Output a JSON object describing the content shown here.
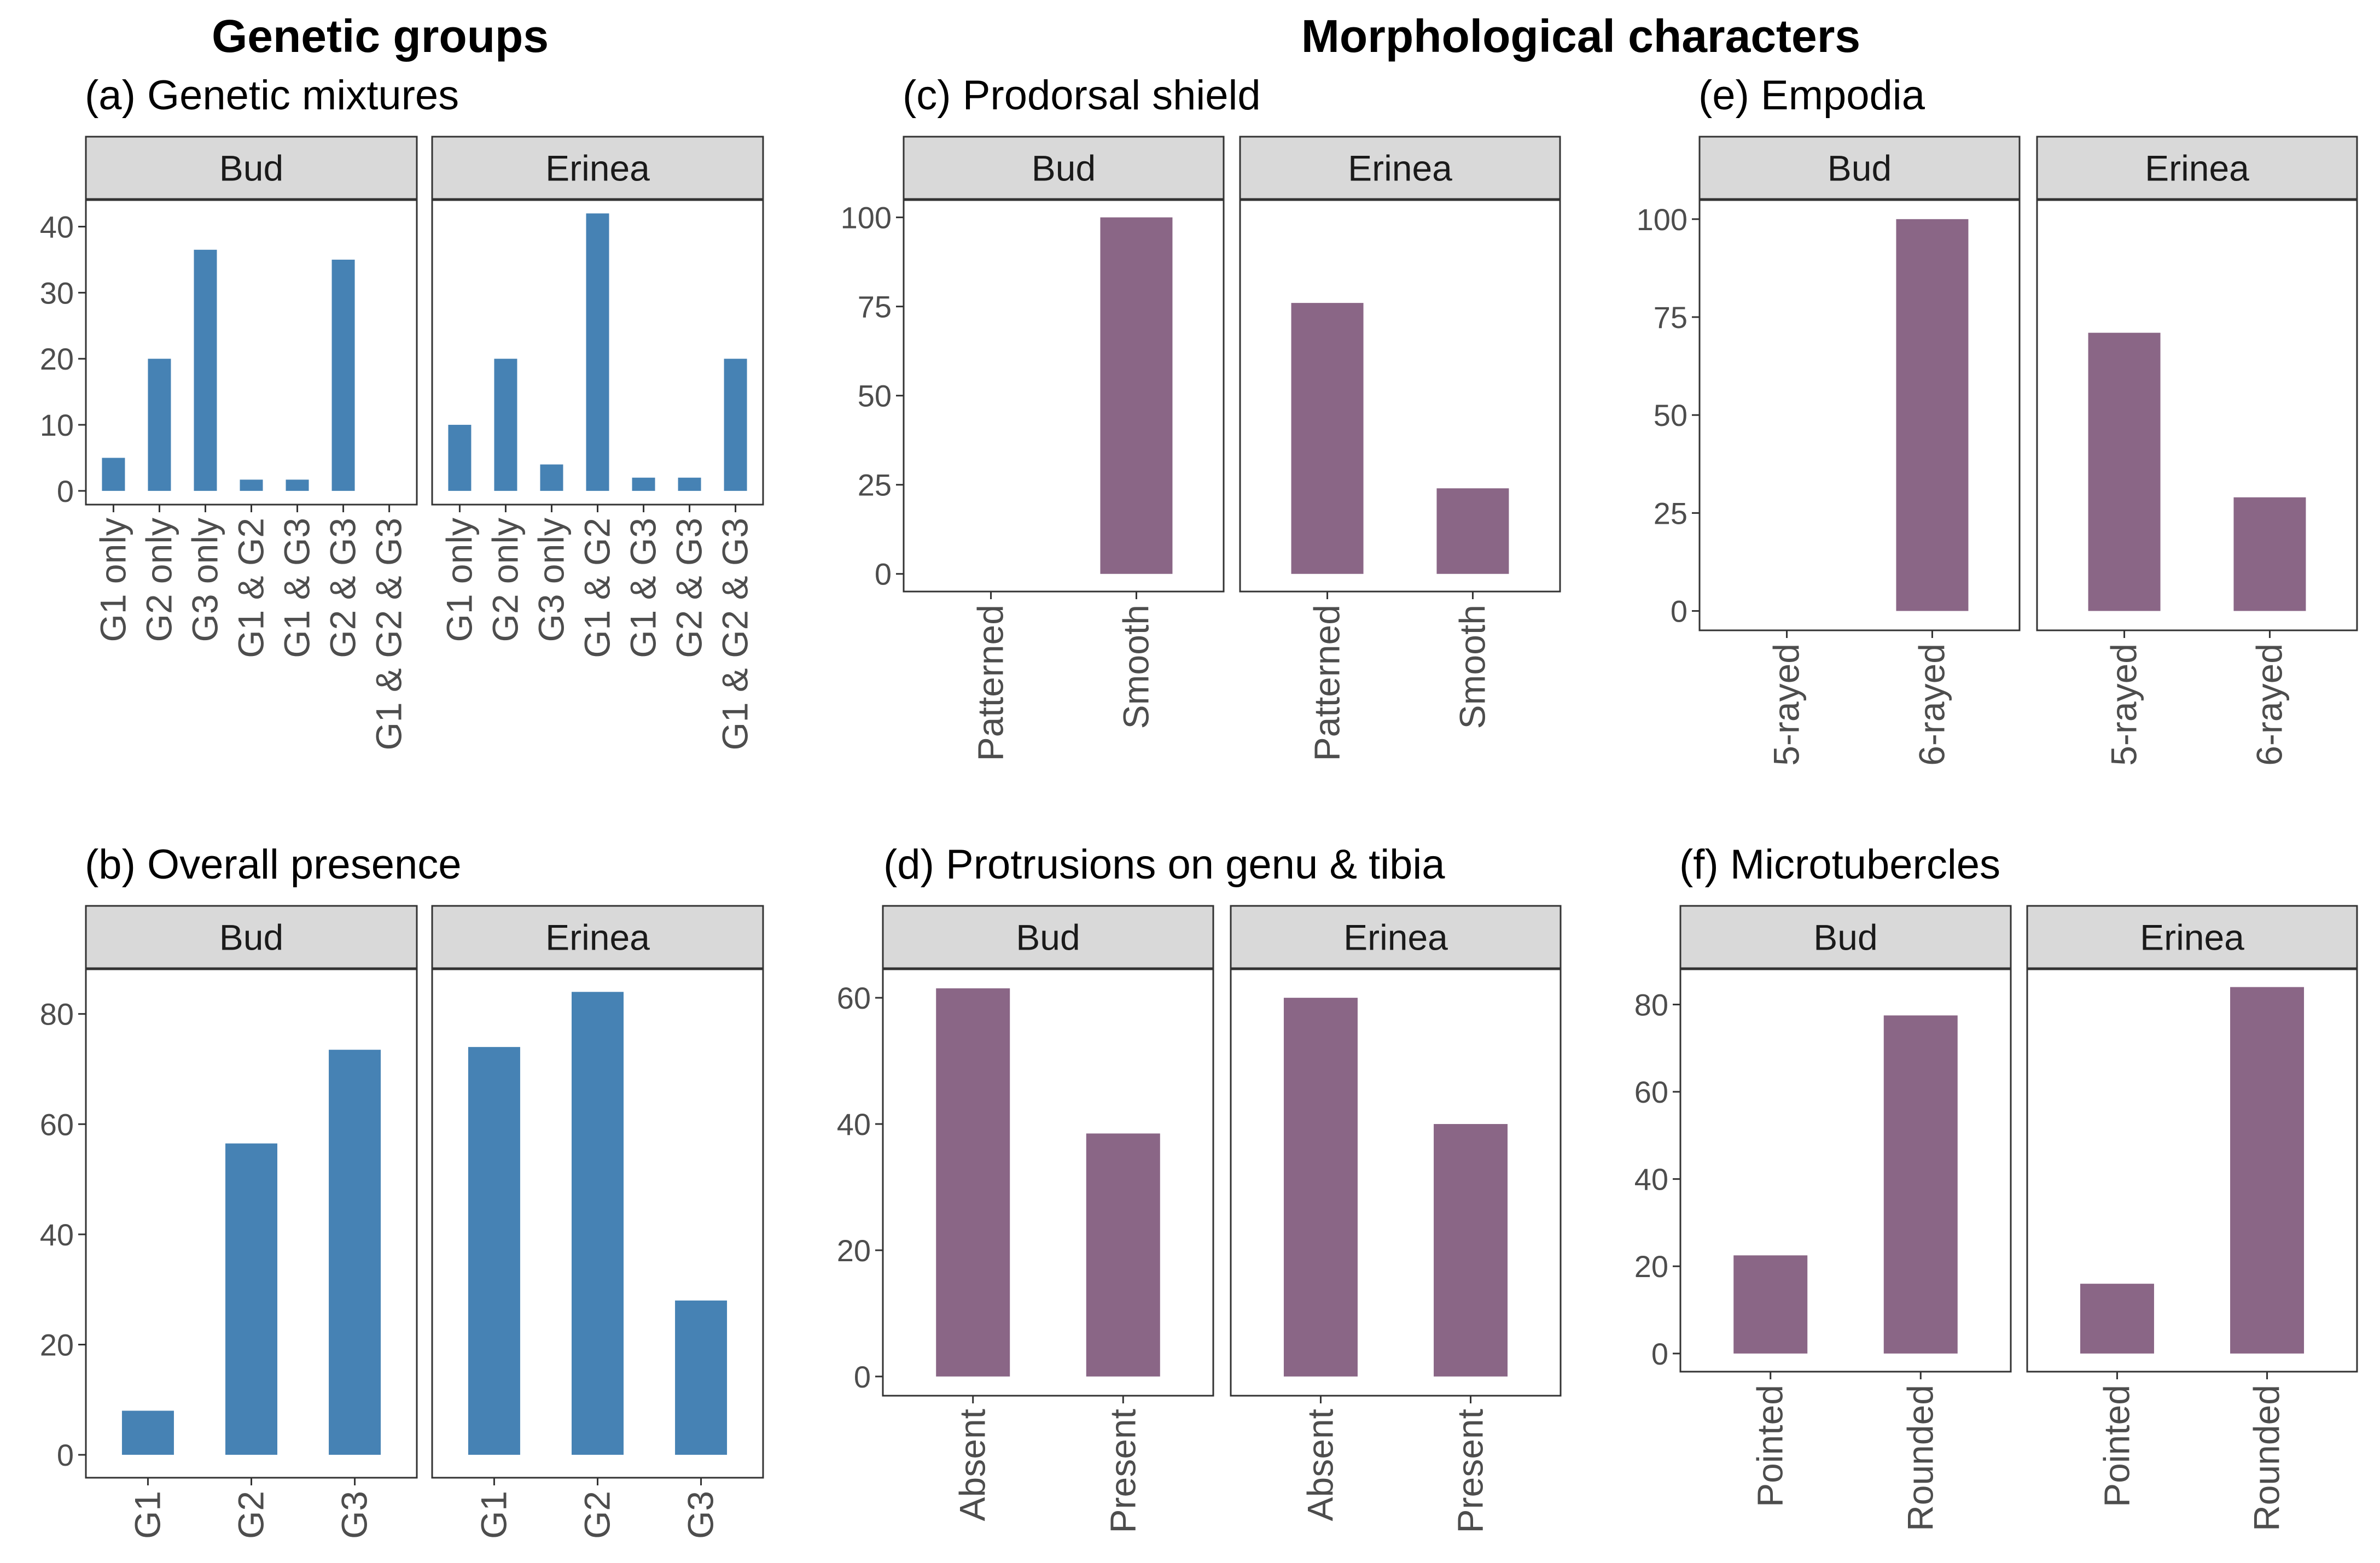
{
  "headers": {
    "genetic": "Genetic groups",
    "morph": "Morphological characters"
  },
  "chart_data": [
    {
      "id": "a",
      "type": "bar",
      "title": "(a) Genetic mixtures",
      "color": "#4682B4",
      "facets": [
        "Bud",
        "Erinea"
      ],
      "categories": [
        "G1 only",
        "G2 only",
        "G3 only",
        "G1 & G2",
        "G1 & G3",
        "G2 & G3",
        "G1 & G2 & G3"
      ],
      "series": [
        {
          "name": "Bud",
          "values": [
            5,
            20,
            36.5,
            1.7,
            1.7,
            35,
            0
          ]
        },
        {
          "name": "Erinea",
          "values": [
            10,
            20,
            4,
            42,
            2,
            2,
            20
          ]
        }
      ],
      "ylim": [
        0,
        44.1
      ],
      "yticks": [
        0,
        10,
        20,
        30,
        40
      ],
      "xlabel": "",
      "ylabel": ""
    },
    {
      "id": "b",
      "type": "bar",
      "title": "(b) Overall presence",
      "color": "#4682B4",
      "facets": [
        "Bud",
        "Erinea"
      ],
      "categories": [
        "G1",
        "G2",
        "G3"
      ],
      "series": [
        {
          "name": "Bud",
          "values": [
            8,
            56.5,
            73.5
          ]
        },
        {
          "name": "Erinea",
          "values": [
            74,
            84,
            28
          ]
        }
      ],
      "ylim": [
        0,
        88.2
      ],
      "yticks": [
        0,
        20,
        40,
        60,
        80
      ],
      "xlabel": "",
      "ylabel": ""
    },
    {
      "id": "c",
      "type": "bar",
      "title": "(c) Prodorsal shield",
      "color": "#8A6686",
      "facets": [
        "Bud",
        "Erinea"
      ],
      "categories": [
        "Patterned",
        "Smooth"
      ],
      "series": [
        {
          "name": "Bud",
          "values": [
            0,
            100
          ]
        },
        {
          "name": "Erinea",
          "values": [
            76,
            24
          ]
        }
      ],
      "ylim": [
        0,
        105
      ],
      "yticks": [
        0,
        25,
        50,
        75,
        100
      ],
      "xlabel": "",
      "ylabel": ""
    },
    {
      "id": "d",
      "type": "bar",
      "title": "(d) Protrusions on genu & tibia",
      "color": "#8A6686",
      "facets": [
        "Bud",
        "Erinea"
      ],
      "categories": [
        "Absent",
        "Present"
      ],
      "series": [
        {
          "name": "Bud",
          "values": [
            61.5,
            38.5
          ]
        },
        {
          "name": "Erinea",
          "values": [
            60,
            40
          ]
        }
      ],
      "ylim": [
        0,
        64.6
      ],
      "yticks": [
        0,
        20,
        40,
        60
      ],
      "xlabel": "",
      "ylabel": ""
    },
    {
      "id": "e",
      "type": "bar",
      "title": "(e) Empodia",
      "color": "#8A6686",
      "facets": [
        "Bud",
        "Erinea"
      ],
      "categories": [
        "5-rayed",
        "6-rayed"
      ],
      "series": [
        {
          "name": "Bud",
          "values": [
            0,
            100
          ]
        },
        {
          "name": "Erinea",
          "values": [
            71,
            29
          ]
        }
      ],
      "ylim": [
        0,
        105
      ],
      "yticks": [
        0,
        25,
        50,
        75,
        100
      ],
      "xlabel": "",
      "ylabel": ""
    },
    {
      "id": "f",
      "type": "bar",
      "title": "(f) Microtubercles",
      "color": "#8A6686",
      "facets": [
        "Bud",
        "Erinea"
      ],
      "categories": [
        "Pointed",
        "Rounded"
      ],
      "series": [
        {
          "name": "Bud",
          "values": [
            22.5,
            77.5
          ]
        },
        {
          "name": "Erinea",
          "values": [
            16,
            84
          ]
        }
      ],
      "ylim": [
        0,
        88.2
      ],
      "yticks": [
        0,
        20,
        40,
        60,
        80
      ],
      "xlabel": "",
      "ylabel": ""
    }
  ]
}
